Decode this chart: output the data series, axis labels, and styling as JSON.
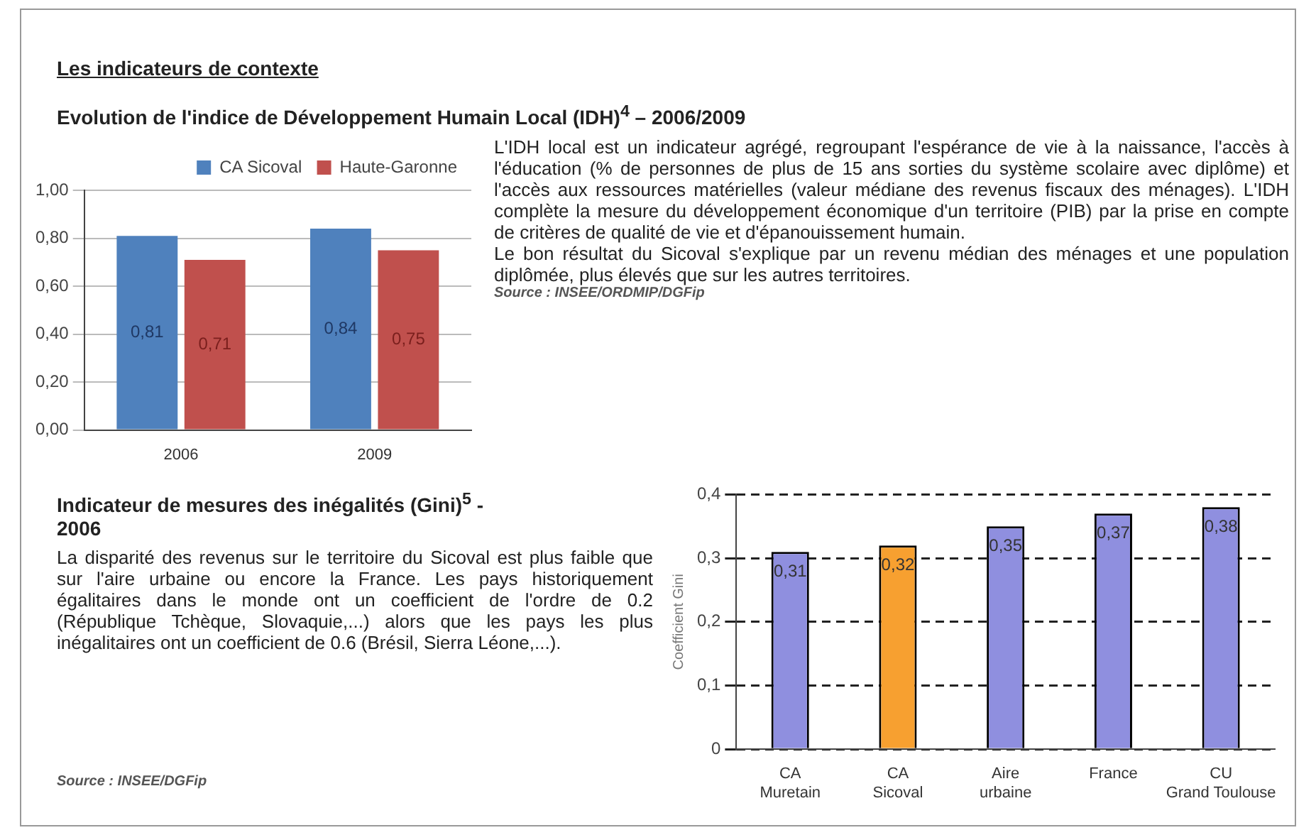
{
  "chart_data": [
    {
      "type": "bar",
      "title": "Evolution de l'indice de Développement Humain Local (IDH)$^{4}$ – 2006/2009",
      "categories": [
        "2006",
        "2009"
      ],
      "series": [
        {
          "name": "CA Sicoval",
          "color": "#4f81bd",
          "values": [
            0.81,
            0.84
          ],
          "value_labels": [
            "0,81",
            "0,84"
          ]
        },
        {
          "name": "Haute-Garonne",
          "color": "#c0504d",
          "values": [
            0.71,
            0.75
          ],
          "value_labels": [
            "0,71",
            "0,75"
          ]
        }
      ],
      "ylim": [
        0,
        1
      ],
      "yticks": [
        {
          "value": 0,
          "label": "0,00"
        },
        {
          "value": 0.2,
          "label": "0,20"
        },
        {
          "value": 0.4,
          "label": "0,40"
        },
        {
          "value": 0.6,
          "label": "0,60"
        },
        {
          "value": 0.8,
          "label": "0,80"
        },
        {
          "value": 1,
          "label": "1,00"
        }
      ],
      "grid": "y",
      "legend": "top",
      "annotations": [
        "Les indicateurs de contexte",
        "L'IDH local est un indicateur agrégé, regroupant l'espérance de vie à la naissance, l'accès à l'éducation (% de personnes de plus de 15 ans sorties du système scolaire avec diplôme) et l'accès aux ressources matérielles (valeur médiane des revenus fiscaux des ménages). L'IDH complète la mesure du développement économique d'un territoire (PIB) par la prise en compte de critères de qualité de vie et d'épanouissement humain.",
        "Le bon résultat du Sicoval s'explique par un revenu médian des ménages et une population diplômée, plus élevés que sur les autres territoires.",
        "Source : INSEE/ORDMIP/DGFip"
      ]
    },
    {
      "type": "bar",
      "title": "Indicateur de mesures des inégalités (Gini)$^{5}$ - 2006",
      "categories": [
        "CA Muretain",
        "CA Sicoval",
        "Aire urbaine",
        "France",
        "CU Grand Toulouse"
      ],
      "values": [
        0.31,
        0.32,
        0.35,
        0.37,
        0.38
      ],
      "colors": [
        "#8f8fdf",
        "#f7a030",
        "#8f8fdf",
        "#8f8fdf",
        "#8f8fdf"
      ],
      "value_labels": [
        "0,31",
        "0,32",
        "0,35",
        "0,37",
        "0,38"
      ],
      "ylabel": "Coefficient Gini",
      "ylim": [
        0,
        0.4
      ],
      "yticks": [
        0,
        {
          "value": 0.1,
          "label": "0,1"
        },
        {
          "value": 0.2,
          "label": "0,2"
        },
        {
          "value": 0.3,
          "label": "0,3"
        },
        {
          "value": 0.4,
          "label": "0,4"
        }
      ],
      "grid": "y",
      "annotations": [
        "La disparité des revenus sur le territoire du Sicoval est plus faible que sur l'aire urbaine ou encore la France. Les pays historiquement égalitaires dans le monde ont un coefficient de l'ordre de 0.2 (République Tchèque, Slovaquie,...) alors que les pays les plus inégalitaires ont un coefficient de 0.6 (Brésil, Sierra Léone,...).",
        "Source : INSEE/DGFip"
      ]
    }
  ]
}
